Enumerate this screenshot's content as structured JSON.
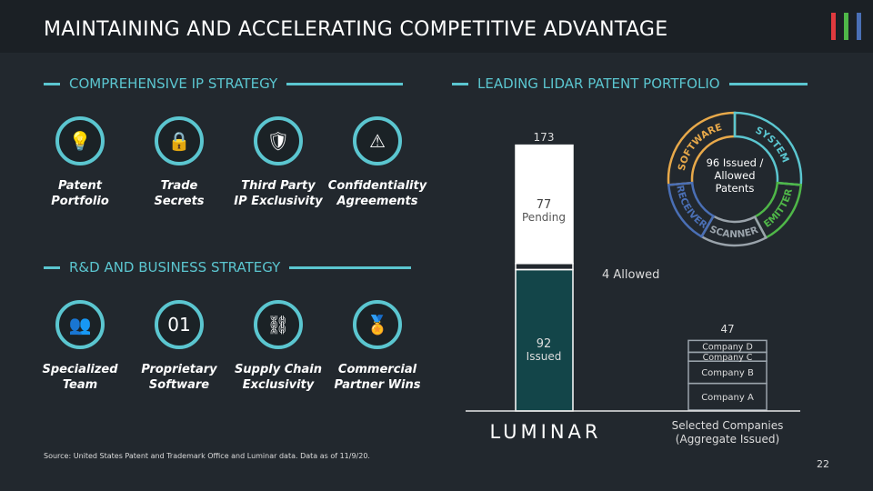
{
  "title": "MAINTAINING AND ACCELERATING COMPETITIVE ADVANTAGE",
  "brand_colors": [
    "#e03a3e",
    "#4fb748",
    "#4a6fb5"
  ],
  "accent": "#5bc6d0",
  "ip_strategy": {
    "heading": "COMPREHENSIVE IP STRATEGY",
    "items": [
      {
        "icon": "lightbulb-gear-icon",
        "line1": "Patent",
        "line2": "Portfolio"
      },
      {
        "icon": "padlock-icon",
        "line1": "Trade",
        "line2": "Secrets"
      },
      {
        "icon": "head-shield-icon",
        "line1": "Third Party",
        "line2": "IP Exclusivity"
      },
      {
        "icon": "warning-tag-icon",
        "line1": "Confidentiality",
        "line2": "Agreements"
      }
    ]
  },
  "rd_strategy": {
    "heading": "R&D AND BUSINESS STRATEGY",
    "items": [
      {
        "icon": "team-icon",
        "line1": "Specialized",
        "line2": "Team"
      },
      {
        "icon": "binary-document-icon",
        "line1": "Proprietary",
        "line2": "Software"
      },
      {
        "icon": "broken-chain-icon",
        "line1": "Supply Chain",
        "line2": "Exclusivity"
      },
      {
        "icon": "medal-icon",
        "line1": "Commercial",
        "line2": "Partner Wins"
      }
    ]
  },
  "portfolio": {
    "heading": "LEADING LIDAR PATENT PORTFOLIO",
    "donut": {
      "center_line1": "96 Issued /",
      "center_line2": "Allowed",
      "center_line3": "Patents",
      "segments": [
        {
          "label": "SOFTWARE",
          "color": "#e8a94a"
        },
        {
          "label": "SYSTEM",
          "color": "#5bc6d0"
        },
        {
          "label": "EMITTER",
          "color": "#4fb748"
        },
        {
          "label": "SCANNER",
          "color": "#9aa3ab"
        },
        {
          "label": "RECEIVER",
          "color": "#4a6fb5"
        }
      ]
    }
  },
  "chart_data": {
    "type": "bar",
    "stacked": true,
    "categories": [
      "LUMINAR",
      "Selected Companies (Aggregate Issued)"
    ],
    "luminar": {
      "logo": "LUMINAR",
      "total": "173",
      "segments": [
        {
          "name": "Issued",
          "value": 92,
          "label1": "92",
          "label2": "Issued",
          "fill": "#134549"
        },
        {
          "name": "Allowed",
          "value": 4,
          "label": "4 Allowed",
          "fill": "none"
        },
        {
          "name": "Pending",
          "value": 77,
          "label1": "77",
          "label2": "Pending",
          "fill": "#ffffff"
        }
      ]
    },
    "companies": {
      "label1": "Selected Companies",
      "label2": "(Aggregate Issued)",
      "total": "47",
      "segments": [
        {
          "name": "Company A",
          "value": 18
        },
        {
          "name": "Company B",
          "value": 15
        },
        {
          "name": "Company C",
          "value": 6
        },
        {
          "name": "Company D",
          "value": 8
        }
      ]
    }
  },
  "source": "Source: United States Patent and Trademark Office and Luminar data. Data as of 11/9/20.",
  "page_number": "22"
}
